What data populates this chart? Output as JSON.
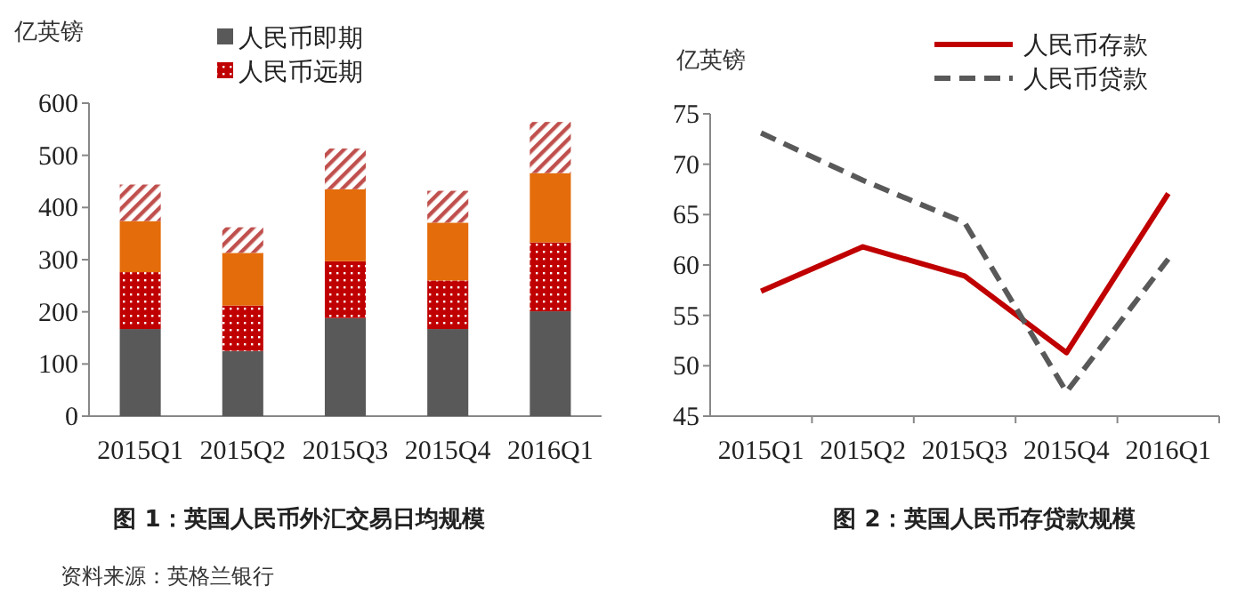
{
  "chart_data": [
    {
      "type": "bar",
      "stacked": true,
      "title": "图 1：英国人民币外汇交易日均规模",
      "ylabel": "亿英镑",
      "categories": [
        "2015Q1",
        "2015Q2",
        "2015Q3",
        "2015Q4",
        "2016Q1"
      ],
      "ylim": [
        0,
        600
      ],
      "yticks": [
        0,
        100,
        200,
        300,
        400,
        500,
        600
      ],
      "grid": false,
      "legend": "top",
      "series": [
        {
          "name": "人民币即期",
          "color": "#595959",
          "values": [
            167,
            125,
            188,
            167,
            201
          ]
        },
        {
          "name": "人民币远期",
          "color": "#c00000",
          "values": [
            109,
            87,
            109,
            93,
            132
          ]
        },
        {
          "color": "#e46c0a",
          "values": [
            98,
            101,
            138,
            111,
            133
          ]
        },
        {
          "color": "#c0504d",
          "values": [
            70,
            49,
            78,
            61,
            98
          ]
        }
      ],
      "annotations": [
        "资料来源：英格兰银行"
      ]
    },
    {
      "type": "line",
      "title": "图 2：英国人民币存贷款规模",
      "ylabel": "亿英镑",
      "categories": [
        "2015Q1",
        "2015Q2",
        "2015Q3",
        "2015Q4",
        "2016Q1"
      ],
      "ylim": [
        45,
        75
      ],
      "yticks": [
        45,
        50,
        55,
        60,
        65,
        70,
        75
      ],
      "grid": false,
      "legend": "top right",
      "series": [
        {
          "name": "人民币存款",
          "color": "#c00000",
          "line_style": "solid",
          "values": [
            57.4,
            61.8,
            58.9,
            51.3,
            67.1
          ]
        },
        {
          "name": "人民币贷款",
          "color": "#595959",
          "line_style": "dashed",
          "values": [
            73.1,
            68.4,
            64.2,
            47.4,
            60.6
          ]
        }
      ]
    }
  ]
}
